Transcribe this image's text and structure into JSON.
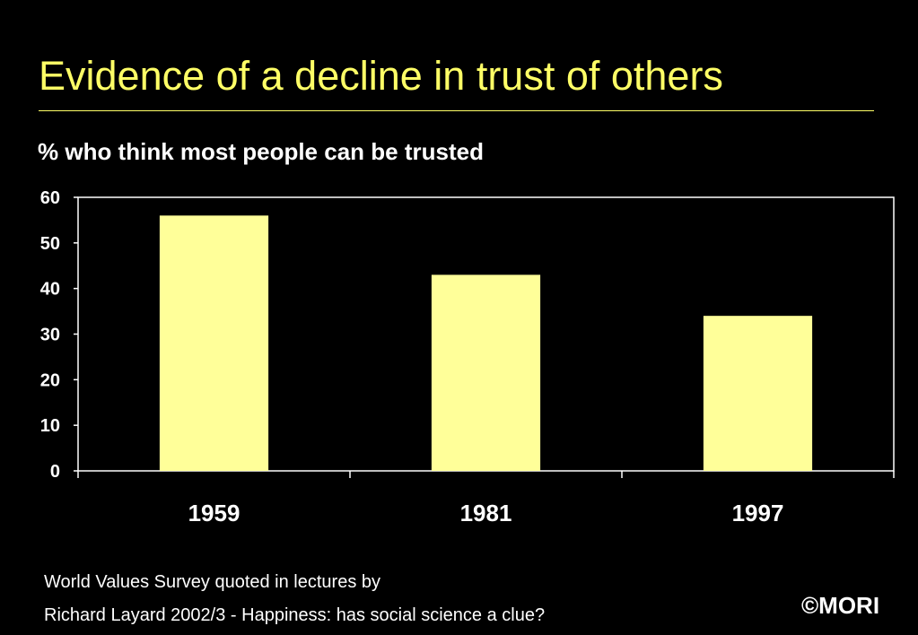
{
  "slide": {
    "title": "Evidence of a decline in trust of others",
    "source_line_1": "World Values Survey quoted in lectures by",
    "source_line_2": "Richard Layard 2002/3 - Happiness: has social science a clue?",
    "copyright": "©MORI"
  },
  "colors": {
    "background": "#000000",
    "title": "#FFFF66",
    "bar_fill": "#FFFF99",
    "axis": "#FFFFFF",
    "text": "#FFFFFF"
  },
  "chart_data": {
    "type": "bar",
    "title": "% who think most people can be trusted",
    "categories": [
      "1959",
      "1981",
      "1997"
    ],
    "values": [
      56,
      43,
      34
    ],
    "ylim": [
      0,
      60
    ],
    "yticks": [
      0,
      10,
      20,
      30,
      40,
      50,
      60
    ],
    "xlabel": "",
    "ylabel": "",
    "grid": false,
    "legend": "none"
  }
}
